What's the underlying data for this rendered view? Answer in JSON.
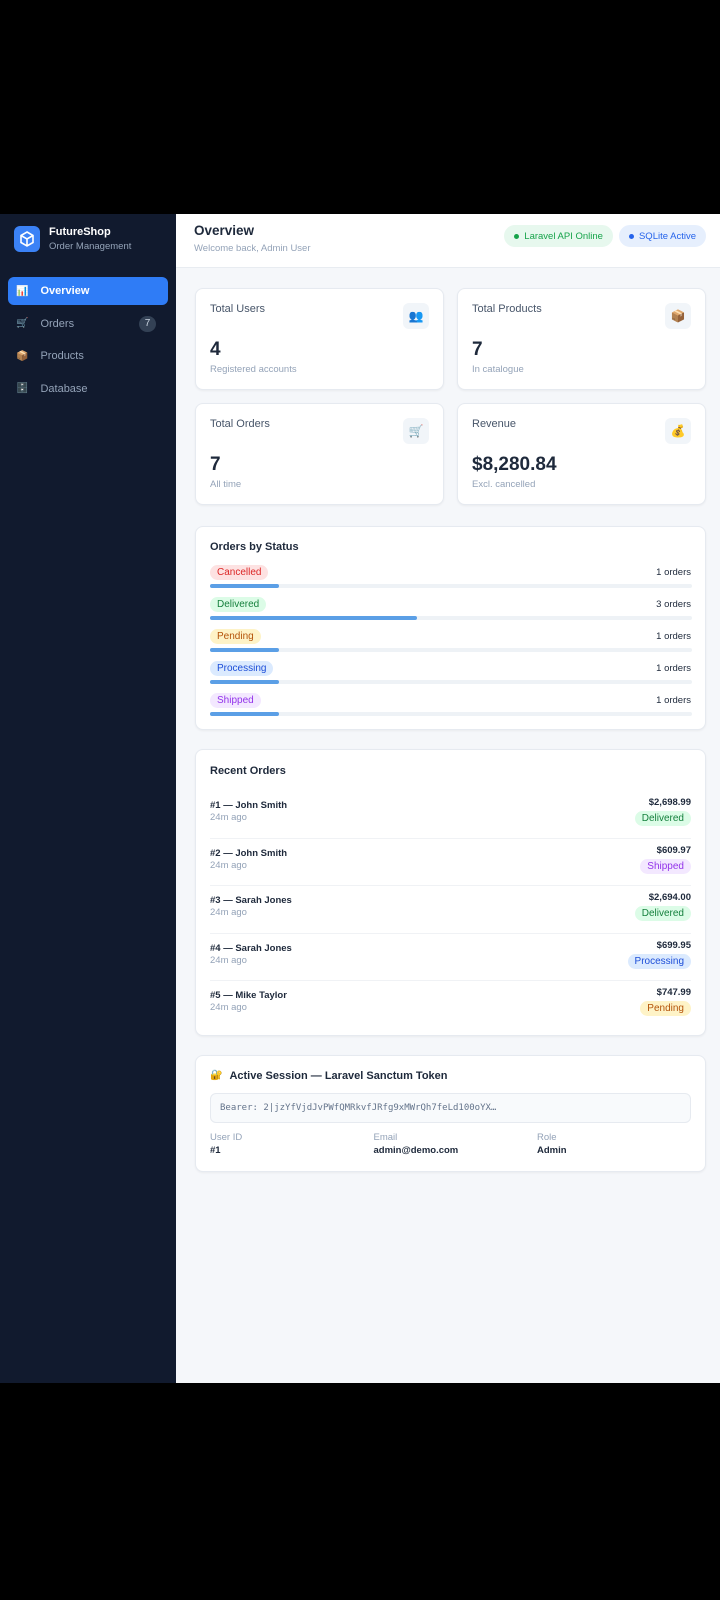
{
  "app": {
    "name": "FutureShop",
    "subtitle": "Order Management"
  },
  "nav": [
    {
      "icon": "📊",
      "label": "Overview"
    },
    {
      "icon": "🛒",
      "label": "Orders",
      "badge": 7
    },
    {
      "icon": "📦",
      "label": "Products"
    },
    {
      "icon": "🗄️",
      "label": "Database"
    }
  ],
  "header": {
    "title": "Overview",
    "subtitle": "Welcome back, Admin User",
    "badges": [
      {
        "label": "Laravel API Online",
        "color": "#16a34a",
        "bg": "#e7f8ee"
      },
      {
        "label": "SQLite Active",
        "color": "#2563eb",
        "bg": "#e6effd"
      }
    ]
  },
  "stats": [
    {
      "label": "Total Users",
      "icon": "👥",
      "value": 4,
      "note": "Registered accounts"
    },
    {
      "label": "Total Products",
      "icon": "📦",
      "value": 7,
      "note": "In catalogue"
    },
    {
      "label": "Total Orders",
      "icon": "🛒",
      "value": 7,
      "note": "All time"
    },
    {
      "label": "Revenue",
      "icon": "💰",
      "value": "$8,280.84",
      "note": "Excl. cancelled"
    }
  ],
  "orders_by_status": {
    "title": "Orders by Status",
    "rows": [
      {
        "status": "Cancelled",
        "count": 1,
        "count_label": "1 orders",
        "color": "#dc2626",
        "bg": "#fde2e2"
      },
      {
        "status": "Delivered",
        "count": 3,
        "count_label": "3 orders",
        "color": "#15803d",
        "bg": "#dcfce7"
      },
      {
        "status": "Pending",
        "count": 1,
        "count_label": "1 orders",
        "color": "#b45309",
        "bg": "#fef3c7"
      },
      {
        "status": "Processing",
        "count": 1,
        "count_label": "1 orders",
        "color": "#1d4ed8",
        "bg": "#dbeafe"
      },
      {
        "status": "Shipped",
        "count": 1,
        "count_label": "1 orders",
        "color": "#9333ea",
        "bg": "#f3e8ff"
      }
    ]
  },
  "recent_orders": {
    "title": "Recent Orders",
    "rows": [
      {
        "order": "#1 — John Smith",
        "time": "24m ago",
        "total": "$2,698.99",
        "status": "Delivered"
      },
      {
        "order": "#2 — John Smith",
        "time": "24m ago",
        "total": "$609.97",
        "status": "Shipped"
      },
      {
        "order": "#3 — Sarah Jones",
        "time": "24m ago",
        "total": "$2,694.00",
        "status": "Delivered"
      },
      {
        "order": "#4 — Sarah Jones",
        "time": "24m ago",
        "total": "$699.95",
        "status": "Processing"
      },
      {
        "order": "#5 — Mike Taylor",
        "time": "24m ago",
        "total": "$747.99",
        "status": "Pending"
      }
    ]
  },
  "session": {
    "icon": "🔐",
    "title": "Active Session — Laravel Sanctum Token",
    "token": "Bearer: 2|jzYfVjdJvPWfQMRkvfJRfg9xMWrQh7feLd100oYX…",
    "fields": [
      {
        "label": "User ID",
        "value": "#1"
      },
      {
        "label": "Email",
        "value": "admin@demo.com"
      },
      {
        "label": "Role",
        "value": "Admin"
      }
    ]
  }
}
